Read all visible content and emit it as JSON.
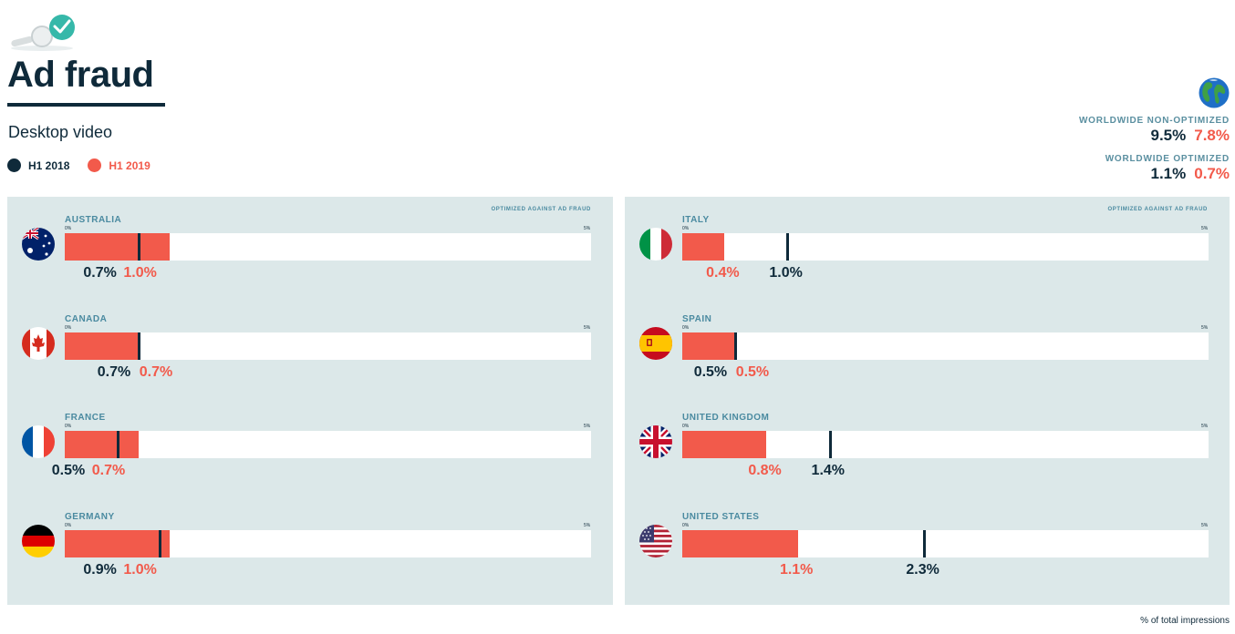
{
  "header": {
    "title": "Ad fraud",
    "subtitle": "Desktop video"
  },
  "legend": [
    {
      "label": "H1 2018",
      "color": "#0f2a3a"
    },
    {
      "label": "H1 2019",
      "color": "#f25a4b"
    }
  ],
  "worldwide": {
    "non_optimized": {
      "label": "WORLDWIDE NON-OPTIMIZED",
      "h1_2018": "9.5%",
      "h1_2019": "7.8%"
    },
    "optimized": {
      "label": "WORLDWIDE OPTIMIZED",
      "h1_2018": "1.1%",
      "h1_2019": "0.7%"
    }
  },
  "panels": [
    {
      "note": "OPTIMIZED AGAINST AD FRAUD",
      "tick_min": "0%",
      "tick_max": "5%"
    },
    {
      "note": "OPTIMIZED AGAINST AD FRAUD",
      "tick_min": "0%",
      "tick_max": "5%"
    }
  ],
  "footnote": "% of total impressions",
  "chart_data": {
    "type": "bar",
    "xlim": [
      0,
      5
    ],
    "unit": "%",
    "series": [
      {
        "name": "H1 2018",
        "color": "#0f2a3a",
        "style": "marker"
      },
      {
        "name": "H1 2019",
        "color": "#f25a4b",
        "style": "bar"
      }
    ],
    "countries": [
      {
        "name": "AUSTRALIA",
        "flag": "australia-flag-icon",
        "h1_2018": 0.7,
        "h1_2019": 1.0,
        "label_2018": "0.7%",
        "label_2019": "1.0%"
      },
      {
        "name": "CANADA",
        "flag": "canada-flag-icon",
        "h1_2018": 0.7,
        "h1_2019": 0.7,
        "label_2018": "0.7%",
        "label_2019": "0.7%"
      },
      {
        "name": "FRANCE",
        "flag": "france-flag-icon",
        "h1_2018": 0.5,
        "h1_2019": 0.7,
        "label_2018": "0.5%",
        "label_2019": "0.7%"
      },
      {
        "name": "GERMANY",
        "flag": "germany-flag-icon",
        "h1_2018": 0.9,
        "h1_2019": 1.0,
        "label_2018": "0.9%",
        "label_2019": "1.0%"
      },
      {
        "name": "ITALY",
        "flag": "italy-flag-icon",
        "h1_2018": 1.0,
        "h1_2019": 0.4,
        "label_2018": "1.0%",
        "label_2019": "0.4%"
      },
      {
        "name": "SPAIN",
        "flag": "spain-flag-icon",
        "h1_2018": 0.5,
        "h1_2019": 0.5,
        "label_2018": "0.5%",
        "label_2019": "0.5%"
      },
      {
        "name": "UNITED KINGDOM",
        "flag": "uk-flag-icon",
        "h1_2018": 1.4,
        "h1_2019": 0.8,
        "label_2018": "1.4%",
        "label_2019": "0.8%"
      },
      {
        "name": "UNITED STATES",
        "flag": "us-flag-icon",
        "h1_2018": 2.3,
        "h1_2019": 1.1,
        "label_2018": "2.3%",
        "label_2019": "1.1%"
      }
    ]
  }
}
